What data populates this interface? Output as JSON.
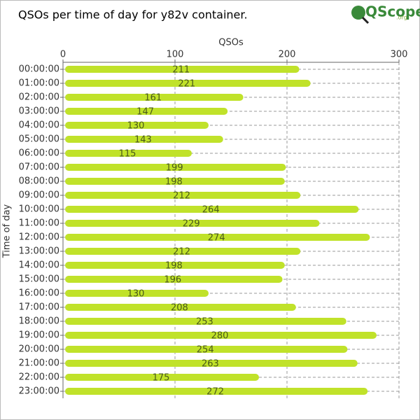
{
  "logo": {
    "text": "QScope",
    "suffix": ".org"
  },
  "chart_data": {
    "type": "hbar",
    "title": "QSOs per time of day for y82v container.",
    "x_label": "QSOs",
    "y_label": "Time of day",
    "categories": [
      "00:00:00",
      "01:00:00",
      "02:00:00",
      "03:00:00",
      "04:00:00",
      "05:00:00",
      "06:00:00",
      "07:00:00",
      "08:00:00",
      "09:00:00",
      "10:00:00",
      "11:00:00",
      "12:00:00",
      "13:00:00",
      "14:00:00",
      "15:00:00",
      "16:00:00",
      "17:00:00",
      "18:00:00",
      "19:00:00",
      "20:00:00",
      "21:00:00",
      "22:00:00",
      "23:00:00"
    ],
    "values": [
      211,
      221,
      161,
      147,
      130,
      143,
      115,
      199,
      198,
      212,
      264,
      229,
      274,
      212,
      198,
      196,
      130,
      208,
      253,
      280,
      254,
      263,
      175,
      272
    ],
    "color": "#c0e22a",
    "xlim": [
      0,
      300
    ],
    "xticks": [
      0,
      100,
      200,
      300
    ],
    "grid": true
  }
}
